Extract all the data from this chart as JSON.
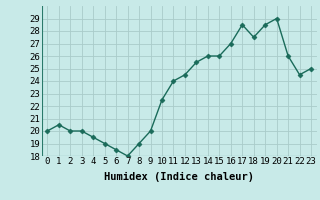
{
  "x": [
    0,
    1,
    2,
    3,
    4,
    5,
    6,
    7,
    8,
    9,
    10,
    11,
    12,
    13,
    14,
    15,
    16,
    17,
    18,
    19,
    20,
    21,
    22,
    23
  ],
  "y": [
    20,
    20.5,
    20,
    20,
    19.5,
    19,
    18.5,
    18,
    19,
    20,
    22.5,
    24,
    24.5,
    25.5,
    26,
    26,
    27,
    28.5,
    27.5,
    28.5,
    29,
    26,
    24.5,
    25
  ],
  "line_color": "#1a6b5a",
  "marker": "D",
  "marker_size": 2.5,
  "bg_color": "#c8eae8",
  "grid_color": "#aaccca",
  "xlabel": "Humidex (Indice chaleur)",
  "xlim": [
    -0.5,
    23.5
  ],
  "ylim": [
    18,
    30
  ],
  "yticks": [
    18,
    19,
    20,
    21,
    22,
    23,
    24,
    25,
    26,
    27,
    28,
    29
  ],
  "xticks": [
    0,
    1,
    2,
    3,
    4,
    5,
    6,
    7,
    8,
    9,
    10,
    11,
    12,
    13,
    14,
    15,
    16,
    17,
    18,
    19,
    20,
    21,
    22,
    23
  ],
  "xlabel_fontsize": 7.5,
  "tick_fontsize": 6.5,
  "linewidth": 1.0
}
